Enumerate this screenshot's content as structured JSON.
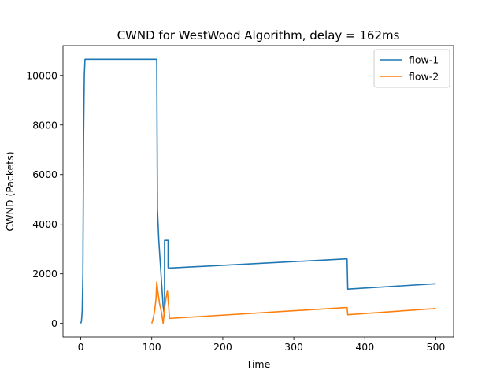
{
  "chart_data": {
    "type": "line",
    "title": "CWND for WestWood Algorithm, delay = 162ms",
    "xlabel": "Time",
    "ylabel": "CWND (Packets)",
    "xlim": [
      -25,
      525
    ],
    "ylim": [
      -550,
      11200
    ],
    "xticks": [
      0,
      100,
      200,
      300,
      400,
      500
    ],
    "yticks": [
      0,
      2000,
      4000,
      6000,
      8000,
      10000
    ],
    "grid": false,
    "legend_position": "top-right",
    "series": [
      {
        "name": "flow-1",
        "color": "#1f77b4",
        "x": [
          0,
          1,
          2,
          3,
          4,
          5,
          6,
          107,
          108,
          110,
          113,
          116,
          118,
          118,
          123,
          123,
          124,
          372,
          375,
          376,
          500
        ],
        "y": [
          0,
          100,
          500,
          2000,
          7500,
          10000,
          10650,
          10650,
          4600,
          3300,
          2000,
          700,
          300,
          3350,
          3350,
          2250,
          2230,
          2600,
          2600,
          1380,
          1600
        ]
      },
      {
        "name": "flow-2",
        "color": "#ff7f0e",
        "x": [
          100,
          102,
          104,
          106,
          107,
          109,
          111,
          114,
          116,
          118,
          120,
          122,
          124,
          125,
          374,
          375,
          376,
          500
        ],
        "y": [
          0,
          200,
          500,
          1000,
          1670,
          1200,
          800,
          400,
          0,
          600,
          1000,
          1330,
          600,
          200,
          640,
          640,
          350,
          600
        ]
      }
    ]
  }
}
